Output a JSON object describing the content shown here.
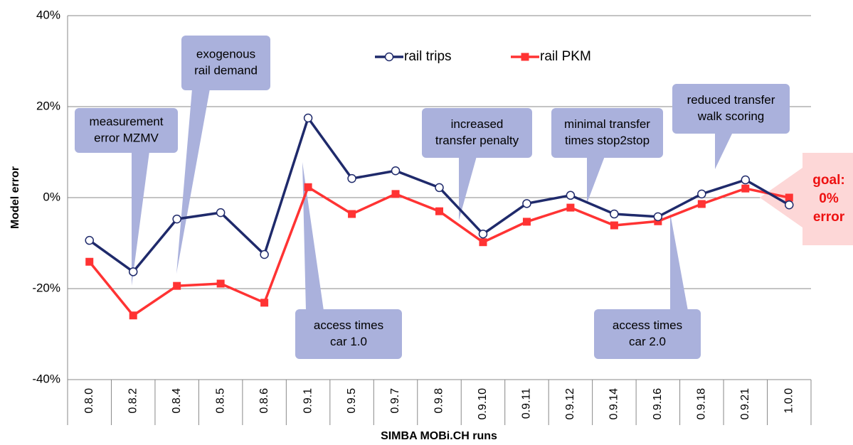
{
  "chart_data": {
    "type": "line",
    "x_label": "SIMBA MOBi.CH runs",
    "y_label": "Model error",
    "categories": [
      "0.8.0",
      "0.8.2",
      "0.8.4",
      "0.8.5",
      "0.8.6",
      "0.9.1",
      "0.9.5",
      "0.9.7",
      "0.9.8",
      "0.9.10",
      "0.9.11",
      "0.9.12",
      "0.9.14",
      "0.9.16",
      "0.9.18",
      "0.9.21",
      "1.0.0"
    ],
    "series": [
      {
        "name": "rail trips",
        "color": "#1f2a6b",
        "marker": "circle",
        "values": [
          -9.4,
          -16.3,
          -4.7,
          -3.3,
          -12.5,
          17.5,
          4.2,
          5.9,
          2.2,
          -8.0,
          -1.3,
          0.5,
          -3.6,
          -4.2,
          0.8,
          3.9,
          -1.6
        ]
      },
      {
        "name": "rail PKM",
        "color": "#ff3333",
        "marker": "square",
        "values": [
          -14.1,
          -25.9,
          -19.4,
          -18.9,
          -23.1,
          2.3,
          -3.6,
          0.8,
          -3.0,
          -9.8,
          -5.3,
          -2.2,
          -6.1,
          -5.2,
          -1.4,
          2.0,
          0
        ]
      }
    ],
    "ylim": [
      -40,
      40
    ],
    "yticks": [
      {
        "value": -40,
        "label": "-40%"
      },
      {
        "value": -20,
        "label": "-20%"
      },
      {
        "value": 0,
        "label": "0%"
      },
      {
        "value": 20,
        "label": "20%"
      },
      {
        "value": 40,
        "label": "40%"
      }
    ],
    "grid": true,
    "annotations": [
      {
        "lines": [
          "measurement",
          "error MZMV"
        ]
      },
      {
        "lines": [
          "exogenous",
          "rail demand"
        ]
      },
      {
        "lines": [
          "access times",
          "car 1.0"
        ]
      },
      {
        "lines": [
          "increased",
          "transfer penalty"
        ]
      },
      {
        "lines": [
          "minimal transfer",
          "times stop2stop"
        ]
      },
      {
        "lines": [
          "access times",
          "car 2.0"
        ]
      },
      {
        "lines": [
          "reduced transfer",
          "walk scoring"
        ]
      }
    ],
    "goal": {
      "lines": [
        "goal:",
        "0%",
        "error"
      ],
      "color": "#ee1111"
    }
  }
}
